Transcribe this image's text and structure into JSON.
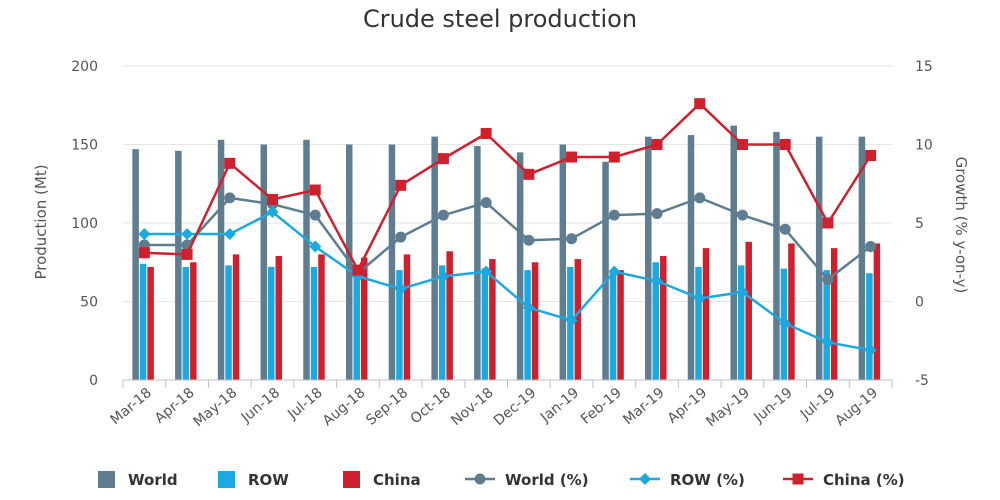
{
  "chart_data": {
    "type": "bar",
    "title": "Crude steel production",
    "xlabel": "",
    "ylabel": "Production (Mt)",
    "y2label": "Growth (% y-on-y)",
    "ylim": [
      0,
      200
    ],
    "y2lim": [
      -5,
      15
    ],
    "yticks": [
      "0",
      "50",
      "100",
      "150",
      "200"
    ],
    "y2ticks": [
      "-5",
      "0",
      "5",
      "10",
      "15"
    ],
    "categories": [
      "Mar-18",
      "Apr-18",
      "May-18",
      "Jun-18",
      "Jul-18",
      "Aug-18",
      "Sep-18",
      "Oct-18",
      "Nov-18",
      "Dec-19",
      "Jan-19",
      "Feb-19",
      "Mar-19",
      "Apr-19",
      "May-19",
      "Jun-19",
      "Jul-19",
      "Aug-19"
    ],
    "bar_series": [
      {
        "name": "World",
        "color": "#5e7d91",
        "values": [
          147,
          146,
          153,
          150,
          153,
          150,
          150,
          155,
          149,
          145,
          150,
          139,
          155,
          156,
          162,
          158,
          155,
          155
        ]
      },
      {
        "name": "ROW",
        "color": "#1aa9e0",
        "values": [
          74,
          72,
          73,
          72,
          72,
          71,
          70,
          73,
          71,
          70,
          72,
          70,
          75,
          72,
          73,
          71,
          70,
          68
        ]
      },
      {
        "name": "China",
        "color": "#d0202e",
        "values": [
          72,
          75,
          80,
          79,
          80,
          78,
          80,
          82,
          77,
          75,
          77,
          70,
          79,
          84,
          88,
          87,
          84,
          87
        ]
      }
    ],
    "line_series": [
      {
        "name": "World (%)",
        "color": "#5e7d91",
        "marker": "circle",
        "values": [
          3.6,
          3.6,
          6.6,
          6.2,
          5.5,
          1.8,
          4.1,
          5.5,
          6.3,
          3.9,
          4.0,
          5.5,
          5.6,
          6.6,
          5.5,
          4.6,
          1.4,
          3.5
        ]
      },
      {
        "name": "ROW (%)",
        "color": "#1aa9e0",
        "marker": "diamond",
        "values": [
          4.3,
          4.3,
          4.3,
          5.7,
          3.5,
          1.6,
          0.8,
          1.6,
          1.9,
          -0.4,
          -1.2,
          1.9,
          1.3,
          0.2,
          0.6,
          -1.4,
          -2.6,
          -3.1
        ]
      },
      {
        "name": "China (%)",
        "color": "#d0202e",
        "marker": "square",
        "values": [
          3.1,
          3.0,
          8.8,
          6.5,
          7.1,
          2.0,
          7.4,
          9.1,
          10.7,
          8.1,
          9.2,
          9.2,
          10.0,
          12.6,
          10.0,
          10.0,
          5.0,
          9.3
        ]
      }
    ],
    "legend": [
      "World",
      "ROW",
      "China",
      "World (%)",
      "ROW (%)",
      "China (%)"
    ],
    "legend_position": "bottom",
    "grid": true
  }
}
